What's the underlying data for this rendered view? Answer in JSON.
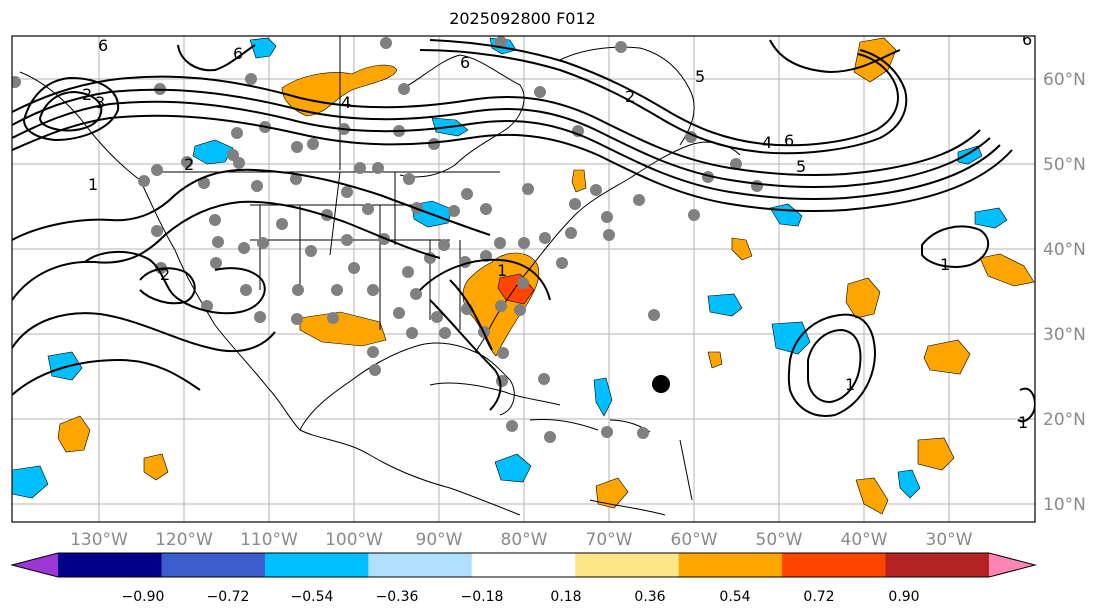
{
  "title": "2025092800 F012",
  "map": {
    "lat_labels": [
      "60°N",
      "50°N",
      "40°N",
      "30°N",
      "20°N",
      "10°N"
    ],
    "lon_labels": [
      "130°W",
      "120°W",
      "110°W",
      "100°W",
      "90°W",
      "80°W",
      "70°W",
      "60°W",
      "50°W",
      "40°W",
      "30°W"
    ],
    "contour_labels": [
      "6",
      "6",
      "2",
      "3",
      "4",
      "1",
      "2",
      "6",
      "5",
      "6",
      "5",
      "4",
      "6",
      "2",
      "1",
      "1",
      "1",
      "1",
      "2"
    ],
    "gridlines": true,
    "hurricane_marker": "storm-center-dot"
  },
  "colorbar": {
    "ticks": [
      "−0.90",
      "−0.72",
      "−0.54",
      "−0.36",
      "−0.18",
      "0.18",
      "0.36",
      "0.54",
      "0.72",
      "0.90"
    ],
    "colors": [
      "#9c36d6",
      "#00008b",
      "#3a5ccc",
      "#00bfff",
      "#b0e0ff",
      "#ffffff",
      "#fde68a",
      "#ffa500",
      "#ff4500",
      "#b22222",
      "#ff86b4"
    ]
  }
}
